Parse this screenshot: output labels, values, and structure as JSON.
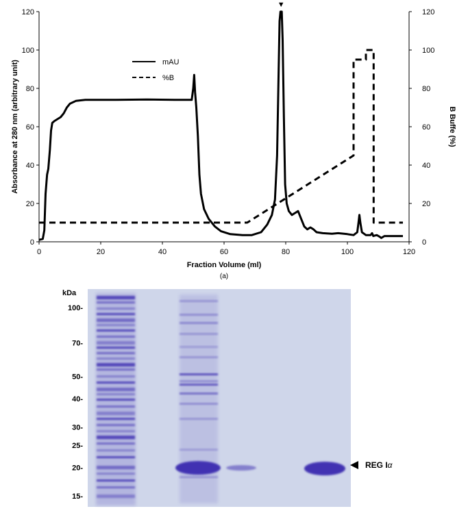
{
  "chart_data": {
    "type": "line",
    "panel_label": "(a)",
    "xlabel": "Fraction Volume (ml)",
    "ylabel_left": "Absorbance at 280 nm (arbitrary unit)",
    "ylabel_right": "B Buffe (%)",
    "xlim": [
      0,
      120
    ],
    "ylim_left": [
      0,
      120
    ],
    "ylim_right": [
      0,
      120
    ],
    "x_ticks": [
      "0",
      "20",
      "40",
      "60",
      "80",
      "100",
      "120"
    ],
    "y_ticks_left": [
      "0",
      "20",
      "40",
      "60",
      "80",
      "100",
      "120"
    ],
    "y_ticks_right": [
      "0",
      "20",
      "40",
      "60",
      "80",
      "100",
      "120"
    ],
    "legend_position": "top-left",
    "grid": false,
    "peak_marker": {
      "symbol": "▼",
      "x": 78.5
    },
    "series": [
      {
        "name": "mAU",
        "style": "solid",
        "axis": "left",
        "color": "#000000",
        "points": [
          [
            0,
            1
          ],
          [
            1.2,
            1.5
          ],
          [
            1.7,
            6
          ],
          [
            2.1,
            25
          ],
          [
            2.6,
            35
          ],
          [
            3.0,
            38
          ],
          [
            3.5,
            48
          ],
          [
            3.9,
            58
          ],
          [
            4.3,
            62
          ],
          [
            5,
            63
          ],
          [
            7,
            65
          ],
          [
            8,
            67
          ],
          [
            9,
            70
          ],
          [
            10,
            72
          ],
          [
            12,
            73.5
          ],
          [
            15,
            74
          ],
          [
            25,
            74
          ],
          [
            35,
            74.2
          ],
          [
            45,
            74
          ],
          [
            49.5,
            74
          ],
          [
            50.0,
            80
          ],
          [
            50.3,
            87
          ],
          [
            50.6,
            78
          ],
          [
            51.0,
            70
          ],
          [
            51.5,
            55
          ],
          [
            52,
            35
          ],
          [
            52.5,
            25
          ],
          [
            53.5,
            17
          ],
          [
            55,
            12
          ],
          [
            57,
            8
          ],
          [
            59,
            5.5
          ],
          [
            62,
            4
          ],
          [
            66,
            3.5
          ],
          [
            69,
            3.5
          ],
          [
            72,
            5
          ],
          [
            74,
            9
          ],
          [
            75.5,
            14
          ],
          [
            76.5,
            22
          ],
          [
            77.2,
            45
          ],
          [
            77.7,
            90
          ],
          [
            78.0,
            115
          ],
          [
            78.3,
            120
          ],
          [
            78.7,
            120
          ],
          [
            79.0,
            105
          ],
          [
            79.4,
            65
          ],
          [
            79.8,
            30
          ],
          [
            80.3,
            20
          ],
          [
            81,
            16
          ],
          [
            82,
            14
          ],
          [
            83,
            15
          ],
          [
            84,
            16
          ],
          [
            85,
            12
          ],
          [
            86,
            8
          ],
          [
            87,
            6.5
          ],
          [
            88,
            7.5
          ],
          [
            89,
            6.5
          ],
          [
            90,
            5
          ],
          [
            92,
            4.5
          ],
          [
            95,
            4.2
          ],
          [
            97,
            4.5
          ],
          [
            100,
            4
          ],
          [
            102,
            3.5
          ],
          [
            103.2,
            5
          ],
          [
            103.6,
            10
          ],
          [
            103.9,
            14
          ],
          [
            104.2,
            10
          ],
          [
            104.7,
            5
          ],
          [
            106,
            3.5
          ],
          [
            107.5,
            3.5
          ],
          [
            108,
            4.5
          ],
          [
            108.4,
            3
          ],
          [
            109.5,
            3.5
          ],
          [
            110.3,
            2.8
          ],
          [
            111,
            2
          ],
          [
            112,
            3
          ],
          [
            115,
            3
          ],
          [
            118,
            3
          ]
        ]
      },
      {
        "name": "%B",
        "style": "dashed",
        "axis": "right",
        "color": "#000000",
        "points": [
          [
            0,
            10
          ],
          [
            67.5,
            10
          ],
          [
            102,
            45
          ],
          [
            102,
            95
          ],
          [
            106,
            95
          ],
          [
            106,
            100
          ],
          [
            108.5,
            100
          ],
          [
            108.5,
            10
          ],
          [
            118,
            10
          ]
        ]
      }
    ]
  },
  "gel": {
    "unit_label": "kDa",
    "markers": [
      {
        "label": "100-",
        "kda": 100
      },
      {
        "label": "70-",
        "kda": 70
      },
      {
        "label": "50-",
        "kda": 50
      },
      {
        "label": "40-",
        "kda": 40
      },
      {
        "label": "30-",
        "kda": 30
      },
      {
        "label": "25-",
        "kda": 25
      },
      {
        "label": "20-",
        "kda": 20
      },
      {
        "label": "15-",
        "kda": 15
      }
    ],
    "band_label": "REG I",
    "band_label_greek": "α",
    "lane_count": 4,
    "background_color": "#cfd6ea",
    "stain_color": "#3b2bb0"
  }
}
